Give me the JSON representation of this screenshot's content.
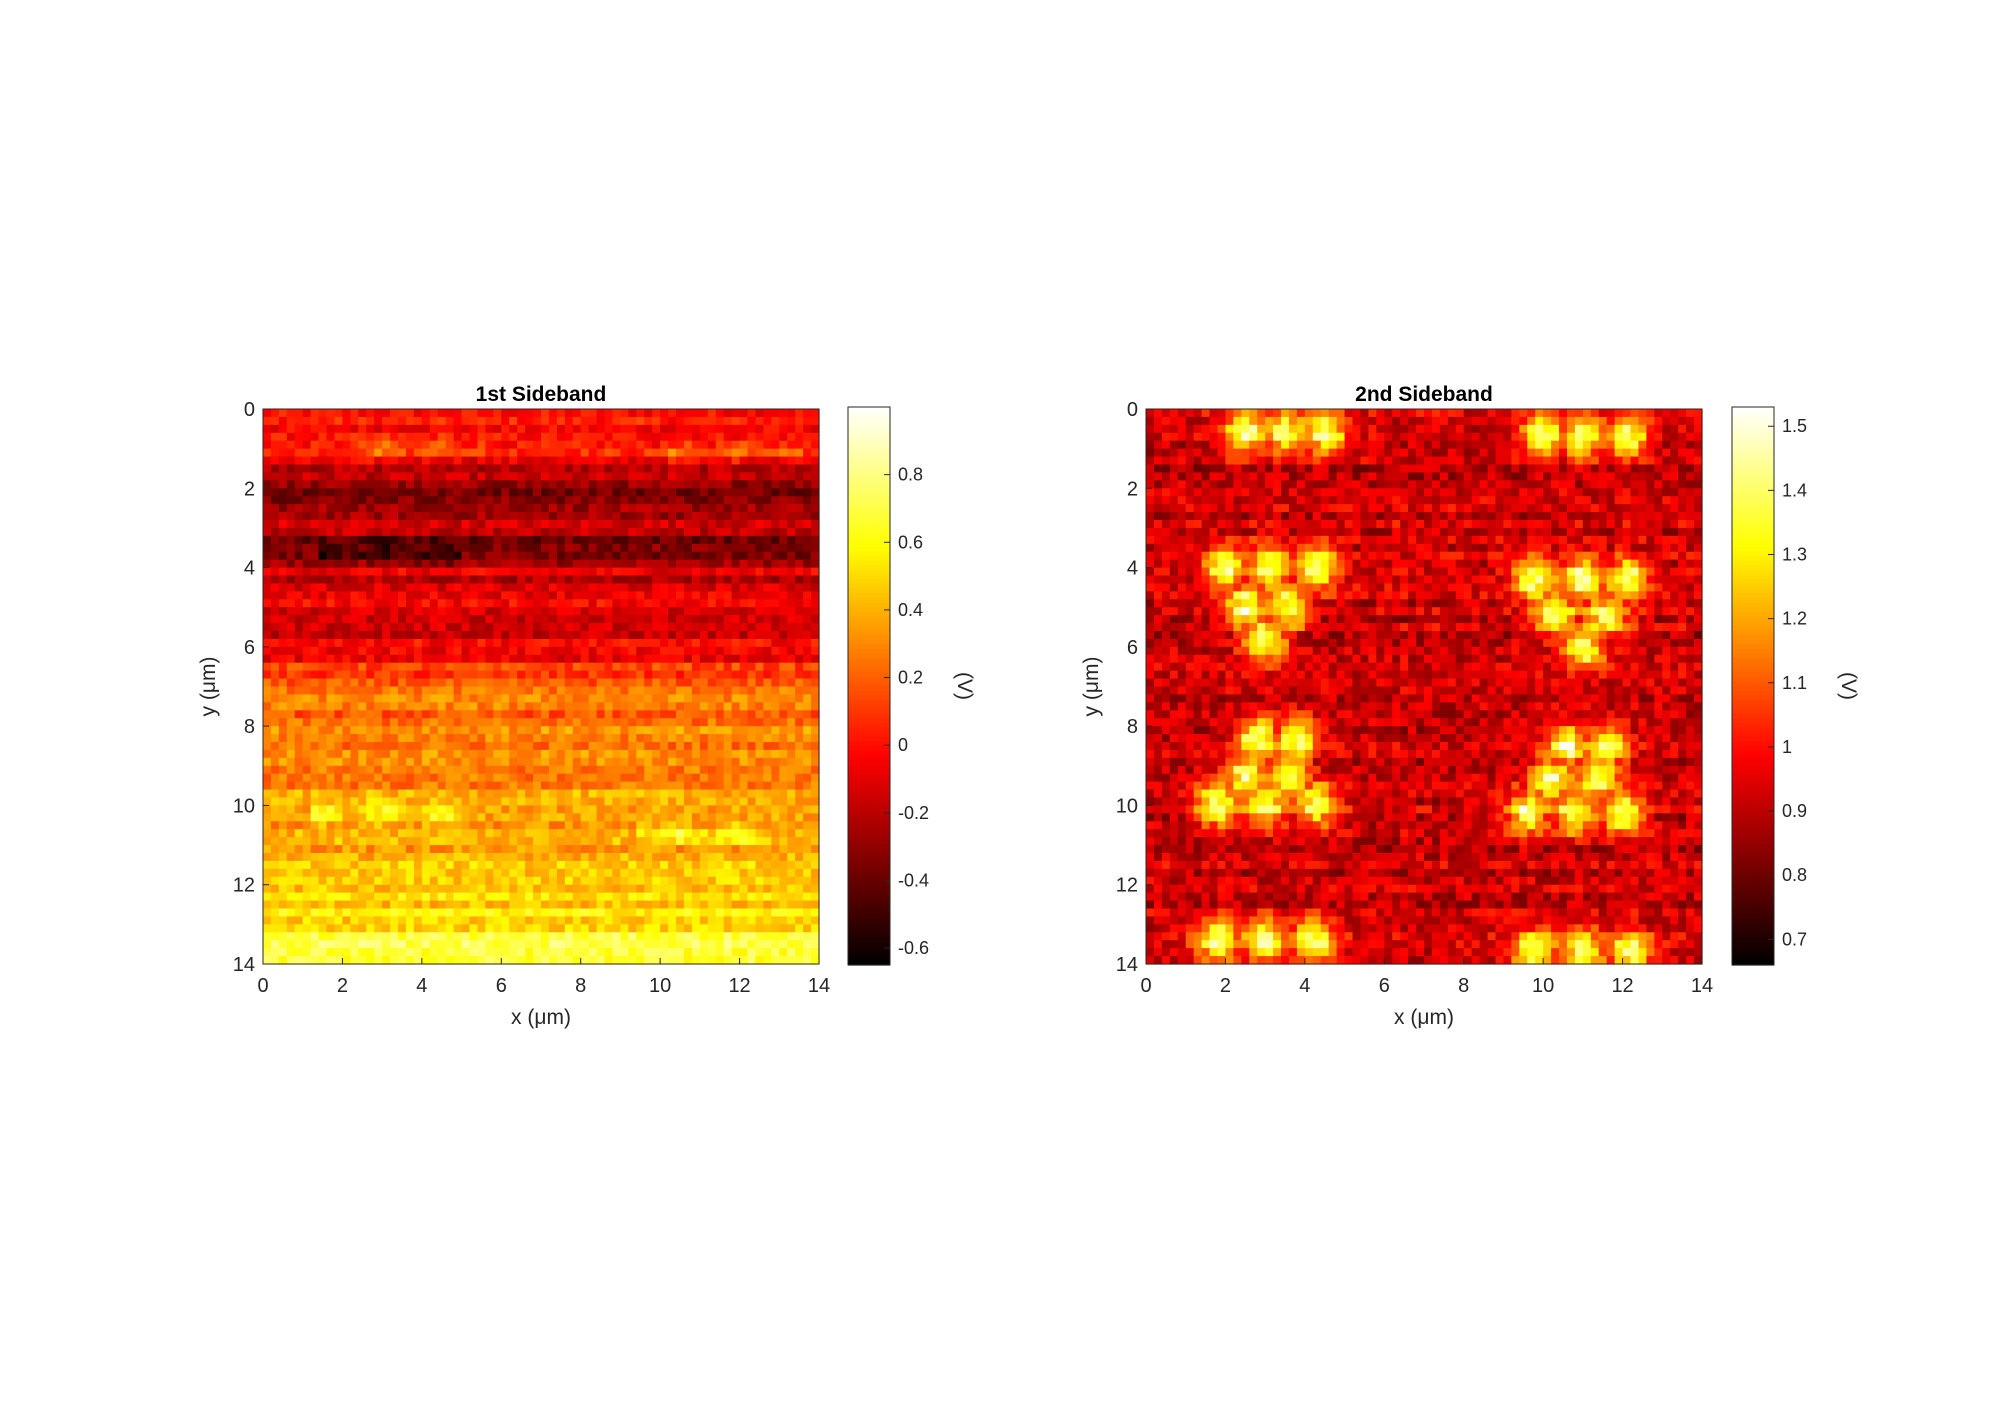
{
  "chart_data": [
    {
      "type": "heatmap",
      "title": "1st Sideband",
      "xlabel": "x (μm)",
      "ylabel": "y (μm)",
      "x_ticks": [
        "0",
        "2",
        "4",
        "6",
        "8",
        "10",
        "12",
        "14"
      ],
      "y_ticks": [
        "0",
        "2",
        "4",
        "6",
        "8",
        "10",
        "12",
        "14"
      ],
      "xlim": [
        0,
        14
      ],
      "ylim": [
        0,
        14
      ],
      "y_direction": "down",
      "colormap": "hot",
      "colorbar": {
        "label": "(V)",
        "range": [
          -0.65,
          1.0
        ],
        "ticks": [
          "0.8",
          "0.6",
          "0.4",
          "0.2",
          "0",
          "-0.2",
          "-0.4",
          "-0.6"
        ]
      },
      "row_profile": {
        "y": [
          0,
          1,
          2,
          3,
          3.5,
          4,
          5,
          6,
          7,
          8,
          9,
          10,
          11,
          12,
          13,
          14
        ],
        "mean": [
          -0.05,
          0.05,
          -0.3,
          -0.2,
          -0.4,
          -0.15,
          -0.1,
          -0.1,
          0.2,
          0.25,
          0.25,
          0.35,
          0.35,
          0.45,
          0.55,
          0.75
        ]
      },
      "features": [
        {
          "x": [
            2.0,
            5.5
          ],
          "y": 1.0,
          "delta": 0.25
        },
        {
          "x": [
            10.0,
            13.5
          ],
          "y": 1.1,
          "delta": 0.2
        },
        {
          "x": [
            1.5,
            5.0
          ],
          "y": 3.6,
          "delta": -0.3
        },
        {
          "x": [
            1.2,
            5.0
          ],
          "y": 10.2,
          "delta": 0.35
        },
        {
          "x": [
            9.5,
            12.5
          ],
          "y": 10.7,
          "delta": 0.3
        }
      ]
    },
    {
      "type": "heatmap",
      "title": "2nd Sideband",
      "xlabel": "x (μm)",
      "ylabel": "y (μm)",
      "x_ticks": [
        "0",
        "2",
        "4",
        "6",
        "8",
        "10",
        "12",
        "14"
      ],
      "y_ticks": [
        "0",
        "2",
        "4",
        "6",
        "8",
        "10",
        "12",
        "14"
      ],
      "xlim": [
        0,
        14
      ],
      "ylim": [
        0,
        14
      ],
      "y_direction": "down",
      "colormap": "hot",
      "colorbar": {
        "label": "(V)",
        "range": [
          0.66,
          1.53
        ],
        "ticks": [
          "1.5",
          "1.4",
          "1.3",
          "1.2",
          "1.1",
          "1",
          "0.9",
          "0.8",
          "0.7"
        ]
      },
      "background_mean": 0.92,
      "blob_peak": 1.42,
      "blobs": [
        {
          "x": 2.5,
          "y": 0.6
        },
        {
          "x": 3.5,
          "y": 0.6
        },
        {
          "x": 4.5,
          "y": 0.6
        },
        {
          "x": 10.0,
          "y": 0.7
        },
        {
          "x": 11.0,
          "y": 0.7
        },
        {
          "x": 12.1,
          "y": 0.7
        },
        {
          "x": 2.0,
          "y": 4.0
        },
        {
          "x": 3.1,
          "y": 4.0
        },
        {
          "x": 4.3,
          "y": 4.0
        },
        {
          "x": 2.5,
          "y": 5.0
        },
        {
          "x": 3.6,
          "y": 5.0
        },
        {
          "x": 3.0,
          "y": 5.8
        },
        {
          "x": 9.8,
          "y": 4.3
        },
        {
          "x": 11.0,
          "y": 4.3
        },
        {
          "x": 12.1,
          "y": 4.3
        },
        {
          "x": 10.3,
          "y": 5.2
        },
        {
          "x": 11.6,
          "y": 5.2
        },
        {
          "x": 11.0,
          "y": 6.0
        },
        {
          "x": 2.8,
          "y": 8.3
        },
        {
          "x": 3.8,
          "y": 8.3
        },
        {
          "x": 2.5,
          "y": 9.2
        },
        {
          "x": 3.6,
          "y": 9.2
        },
        {
          "x": 1.8,
          "y": 10.0
        },
        {
          "x": 3.0,
          "y": 10.0
        },
        {
          "x": 4.3,
          "y": 10.0
        },
        {
          "x": 10.6,
          "y": 8.5
        },
        {
          "x": 11.6,
          "y": 8.5
        },
        {
          "x": 10.2,
          "y": 9.3
        },
        {
          "x": 11.4,
          "y": 9.3
        },
        {
          "x": 9.6,
          "y": 10.2
        },
        {
          "x": 10.8,
          "y": 10.2
        },
        {
          "x": 12.0,
          "y": 10.2
        },
        {
          "x": 1.8,
          "y": 13.4
        },
        {
          "x": 3.0,
          "y": 13.4
        },
        {
          "x": 4.2,
          "y": 13.4
        },
        {
          "x": 9.8,
          "y": 13.7
        },
        {
          "x": 11.0,
          "y": 13.7
        },
        {
          "x": 12.2,
          "y": 13.7
        }
      ]
    }
  ]
}
